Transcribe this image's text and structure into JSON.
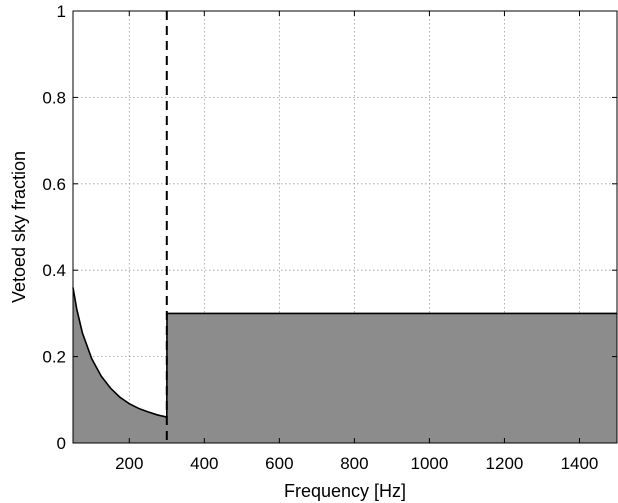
{
  "chart_data": {
    "type": "area",
    "title": "",
    "xlabel": "Frequency [Hz]",
    "ylabel": "Vetoed sky fraction",
    "xlim": [
      50,
      1500
    ],
    "ylim": [
      0,
      1
    ],
    "x_ticks": [
      200,
      400,
      600,
      800,
      1000,
      1200,
      1400
    ],
    "y_ticks": [
      0,
      0.2,
      0.4,
      0.6,
      0.8,
      1
    ],
    "y_tick_labels": [
      "0",
      "0.2",
      "0.4",
      "0.6",
      "0.8",
      "1"
    ],
    "grid": true,
    "fill_color": "#8c8c8c",
    "line_color": "#000000",
    "series": [
      {
        "x": [
          50,
          60,
          75,
          100,
          125,
          150,
          175,
          200,
          225,
          250,
          275,
          300,
          300.5,
          400,
          600,
          800,
          1000,
          1200,
          1400,
          1500
        ],
        "y": [
          0.36,
          0.31,
          0.255,
          0.195,
          0.155,
          0.127,
          0.106,
          0.091,
          0.08,
          0.072,
          0.065,
          0.06,
          0.3,
          0.3,
          0.3,
          0.3,
          0.3,
          0.3,
          0.3,
          0.3
        ]
      }
    ],
    "annotations": [
      {
        "type": "vertical-dashed-line",
        "x": 300
      }
    ]
  }
}
